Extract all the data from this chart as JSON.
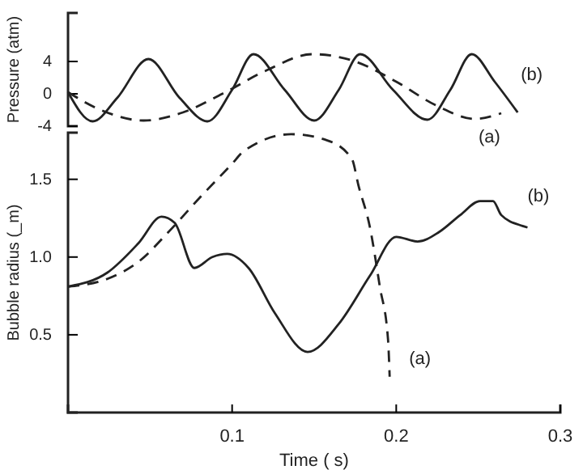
{
  "chart_data": [
    {
      "type": "line",
      "ylabel": "Pressure (atm)",
      "xlim": [
        0,
        0.3
      ],
      "ylim": [
        -4,
        10
      ],
      "yticks": [
        -4,
        0,
        4
      ],
      "tick_labels": "y",
      "series": [
        {
          "name": "(b)",
          "color": "#222222",
          "line_style": "solid",
          "x": [
            0,
            0.015,
            0.03,
            0.049,
            0.068,
            0.085,
            0.1,
            0.113,
            0.132,
            0.15,
            0.165,
            0.178,
            0.198,
            0.219,
            0.233,
            0.246,
            0.26,
            0.274
          ],
          "values": [
            0.2,
            -3.4,
            -0.5,
            4.3,
            -0.5,
            -3.4,
            0.5,
            4.9,
            0.5,
            -3.3,
            0.5,
            4.9,
            0.5,
            -3.2,
            0.5,
            4.9,
            1.5,
            -2.3
          ]
        },
        {
          "name": "(a)",
          "color": "#222222",
          "line_style": "dashed",
          "x": [
            0,
            0.02,
            0.046,
            0.07,
            0.094,
            0.12,
            0.149,
            0.175,
            0.2,
            0.225,
            0.248,
            0.264
          ],
          "values": [
            0.2,
            -2,
            -3.3,
            -2.3,
            0,
            2.8,
            4.9,
            4,
            1.5,
            -1.5,
            -3.1,
            -2.4
          ]
        }
      ]
    },
    {
      "type": "line",
      "xlabel": "Time ( s)",
      "ylabel": "Bubble radius (_m)",
      "xlim": [
        0,
        0.3
      ],
      "ylim": [
        0,
        1.8
      ],
      "xticks": [
        0.1,
        0.2,
        0.3
      ],
      "yticks": [
        0.5,
        {
          "value": 1,
          "label": "1.0"
        },
        1.5
      ],
      "series": [
        {
          "name": "(b)",
          "color": "#222222",
          "line_style": "solid",
          "x": [
            0,
            0.024,
            0.043,
            0.057,
            0.065,
            0.077,
            0.088,
            0.097,
            0.11,
            0.126,
            0.146,
            0.165,
            0.184,
            0.2,
            0.213,
            0.226,
            0.239,
            0.251,
            0.259,
            0.264,
            0.277,
            0.28
          ],
          "values": [
            0.81,
            0.9,
            1.09,
            1.26,
            1.22,
            0.93,
            1,
            1.02,
            0.93,
            0.64,
            0.39,
            0.57,
            0.88,
            1.13,
            1.1,
            1.16,
            1.27,
            1.36,
            1.36,
            1.27,
            1.2,
            1.19
          ]
        },
        {
          "name": "(a)",
          "color": "#222222",
          "line_style": "dashed",
          "x": [
            0,
            0.024,
            0.043,
            0.062,
            0.081,
            0.1,
            0.107,
            0.136,
            0.158,
            0.173,
            0.177,
            0.184,
            0.19,
            0.195,
            0.196
          ],
          "values": [
            0.81,
            0.86,
            0.97,
            1.17,
            1.39,
            1.6,
            1.68,
            1.79,
            1.75,
            1.63,
            1.46,
            1.19,
            0.81,
            0.47,
            0.23
          ]
        }
      ]
    }
  ]
}
